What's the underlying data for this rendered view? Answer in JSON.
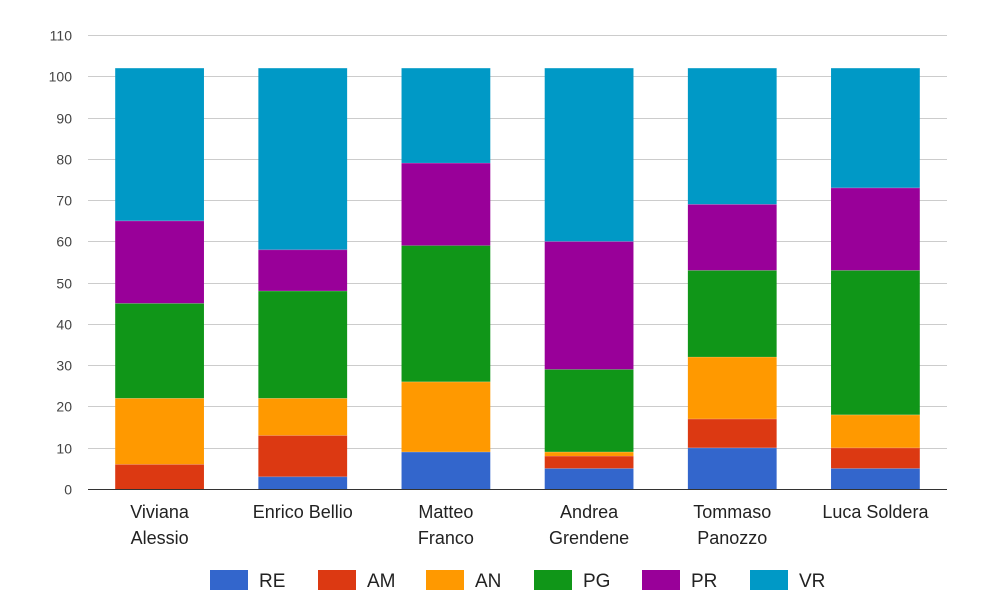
{
  "chart_data": {
    "type": "bar",
    "stacked": true,
    "categories": [
      [
        "Viviana",
        "Alessio"
      ],
      [
        "Enrico Bellio"
      ],
      [
        "Matteo",
        "Franco"
      ],
      [
        "Andrea",
        "Grendene"
      ],
      [
        "Tommaso",
        "Panozzo"
      ],
      [
        "Luca Soldera"
      ]
    ],
    "series": [
      {
        "name": "RE",
        "color": "#3366cc",
        "values": [
          0,
          3,
          9,
          5,
          10,
          5
        ]
      },
      {
        "name": "AM",
        "color": "#dc3912",
        "values": [
          6,
          10,
          0,
          3,
          7,
          5
        ]
      },
      {
        "name": "AN",
        "color": "#ff9900",
        "values": [
          16,
          9,
          17,
          1,
          15,
          8
        ]
      },
      {
        "name": "PG",
        "color": "#109618",
        "values": [
          23,
          26,
          33,
          20,
          21,
          35
        ]
      },
      {
        "name": "PR",
        "color": "#990099",
        "values": [
          20,
          10,
          20,
          31,
          16,
          20
        ]
      },
      {
        "name": "VR",
        "color": "#0099c6",
        "values": [
          37,
          44,
          23,
          42,
          33,
          29
        ]
      }
    ],
    "ylim": [
      0,
      110
    ],
    "yticks": [
      0,
      10,
      20,
      30,
      40,
      50,
      60,
      70,
      80,
      90,
      100,
      110
    ],
    "grid": true,
    "legend_position": "bottom"
  }
}
